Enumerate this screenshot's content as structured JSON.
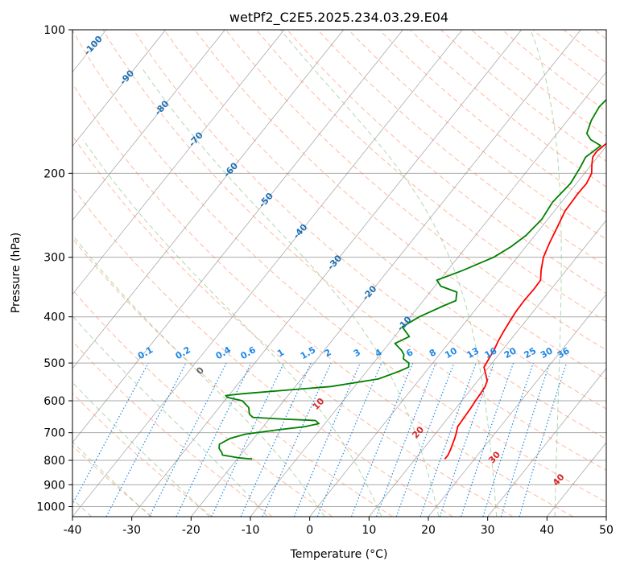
{
  "chart_data": {
    "type": "line",
    "subtype": "skew-t log-p diagram",
    "title": "wetPf2_C2E5.2025.234.03.29.E04",
    "xlabel": "Temperature (°C)",
    "ylabel": "Pressure (hPa)",
    "xlim": [
      -40,
      50
    ],
    "ylim": [
      1050,
      100
    ],
    "y_scale": "log",
    "grid": true,
    "x_ticks": [
      -40,
      -30,
      -20,
      -10,
      0,
      10,
      20,
      30,
      40,
      50
    ],
    "y_ticks": [
      100,
      200,
      300,
      400,
      500,
      600,
      700,
      800,
      900,
      1000
    ],
    "series": [
      {
        "color": "#ff0000",
        "p": [
          795,
          780,
          760,
          740,
          720,
          700,
          680,
          660,
          640,
          620,
          600,
          580,
          560,
          545,
          530,
          510,
          490,
          470,
          450,
          430,
          410,
          390,
          370,
          350,
          335,
          320,
          300,
          280,
          260,
          240,
          220,
          210,
          200,
          192,
          185,
          180,
          175,
          165,
          155,
          145,
          135,
          125,
          118,
          112,
          106,
          100
        ],
        "t": [
          15.0,
          15.0,
          14.7,
          14.3,
          13.9,
          13.4,
          12.8,
          12.7,
          12.6,
          12.5,
          12.3,
          12.2,
          12.0,
          11.6,
          10.6,
          9.2,
          8.9,
          8.6,
          8.1,
          7.7,
          7.4,
          7.1,
          7.0,
          7.1,
          7.0,
          5.8,
          4.4,
          3.5,
          2.7,
          1.8,
          1.6,
          1.7,
          1.2,
          0.1,
          -0.8,
          -0.9,
          -0.5,
          0.4,
          1.1,
          2.3,
          3.3,
          4.0,
          4.1,
          4.1,
          4.0,
          4.0
        ]
      },
      {
        "color": "#008000",
        "p": [
          795,
          790,
          780,
          770,
          755,
          740,
          720,
          705,
          690,
          680,
          670,
          660,
          655,
          650,
          640,
          620,
          600,
          590,
          585,
          580,
          560,
          540,
          520,
          510,
          500,
          490,
          480,
          470,
          455,
          440,
          420,
          400,
          380,
          370,
          355,
          345,
          335,
          320,
          300,
          285,
          270,
          250,
          230,
          210,
          195,
          185,
          175,
          170,
          165,
          155,
          145,
          135,
          125,
          118,
          112,
          106,
          100
        ],
        "t": [
          -17.5,
          -20.0,
          -23.0,
          -23.5,
          -24.5,
          -25.0,
          -24.0,
          -22.0,
          -17.0,
          -13.0,
          -11.0,
          -12.0,
          -18.0,
          -23.0,
          -24.0,
          -25.0,
          -27.0,
          -30.0,
          -30.5,
          -28.0,
          -14.0,
          -7.0,
          -4.5,
          -3.5,
          -4.0,
          -5.5,
          -6.0,
          -7.0,
          -9.0,
          -7.5,
          -10.0,
          -8.5,
          -6.0,
          -4.5,
          -5.5,
          -9.0,
          -10.5,
          -7.5,
          -4.0,
          -2.5,
          -1.5,
          -1.0,
          -1.5,
          -1.0,
          -1.5,
          -2.0,
          -1.0,
          -3.5,
          -5.0,
          -6.0,
          -6.5,
          -6.0,
          -5.5,
          -4.5,
          -3.0,
          -1.5,
          0.0
        ]
      }
    ],
    "reference_lines": {
      "isotherm_spacing": 10,
      "dry_adiabat_labels_C": [
        -100,
        -90,
        -80,
        -70,
        -60,
        -50,
        -40,
        -30,
        -20,
        -10
      ],
      "moist_adiabat_labels_C": [
        0,
        10,
        20,
        30,
        40
      ],
      "mixing_ratio_labels_g_per_kg": [
        "0.1",
        "0.2",
        "0.4",
        "0.6",
        "1",
        "1.5",
        "2",
        "3",
        "4",
        "6",
        "8",
        "10",
        "13",
        "16",
        "20",
        "25",
        "30",
        "36"
      ]
    },
    "colors": {
      "temperature": "#ff0000",
      "dewpoint": "#008000",
      "isotherm": "#7f7f7f",
      "isobar": "#a9a9a9",
      "dry_adiabat": "#ff7f50",
      "moist_adiabat": "#7cbd7c",
      "mixing_ratio": "#1e88e5",
      "dry_label": "#1f6fb4",
      "moist_label": "#d62728",
      "moist_zero_label": "#666666",
      "mixing_label": "#1e88e5",
      "ccl_curve": "#c9b28a"
    }
  }
}
